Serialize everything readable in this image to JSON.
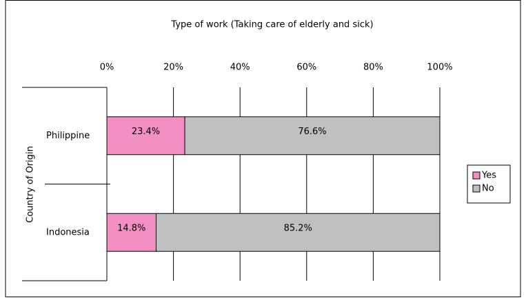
{
  "chart_data": {
    "type": "stacked_bar_horizontal",
    "title": "Type of work (Taking care of elderly and sick)",
    "y_label": "Country of Origin",
    "categories": [
      "Philippine",
      "Indonesia"
    ],
    "series": [
      {
        "name": "Yes",
        "color": "#f48fc4",
        "values": [
          23.4,
          14.8
        ],
        "value_labels": [
          "23.4%",
          "14.8%"
        ]
      },
      {
        "name": "No",
        "color": "#c0c0c0",
        "values": [
          76.6,
          85.2
        ],
        "value_labels": [
          "76.6%",
          "85.2%"
        ]
      }
    ],
    "xlim": [
      0,
      100
    ],
    "xticks": [
      {
        "value": 0,
        "label": "0%"
      },
      {
        "value": 20,
        "label": "20%"
      },
      {
        "value": 40,
        "label": "40%"
      },
      {
        "value": 60,
        "label": "60%"
      },
      {
        "value": 80,
        "label": "80%"
      },
      {
        "value": 100,
        "label": "100%"
      }
    ],
    "grid": true,
    "legend": "right"
  }
}
